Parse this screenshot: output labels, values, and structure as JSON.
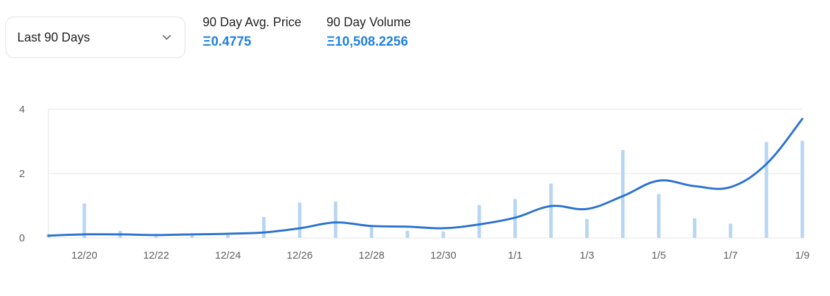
{
  "filter": {
    "selected": "Last 90 Days",
    "icon": "chevron-down-icon"
  },
  "stats": {
    "avg_price_label": "90 Day Avg. Price",
    "avg_price_value": "Ξ0.4775",
    "volume_label": "90 Day Volume",
    "volume_value": "Ξ10,508.2256"
  },
  "colors": {
    "accent": "#2081e2",
    "line": "#2a72d0",
    "bar": "#b7d6f4",
    "grid": "#e6e6e6"
  },
  "chart_data": {
    "type": "line",
    "ylim": [
      0,
      4
    ],
    "grid": true,
    "y_ticks": [
      "0",
      "2",
      "4"
    ],
    "x_tick_labels": [
      "12/20",
      "12/22",
      "12/24",
      "12/26",
      "12/28",
      "12/30",
      "1/1",
      "1/3",
      "1/5",
      "1/7",
      "1/9"
    ],
    "x_tick_days": [
      1,
      3,
      5,
      7,
      9,
      11,
      13,
      15,
      17,
      19,
      21
    ],
    "days": [
      0,
      1,
      2,
      3,
      4,
      5,
      6,
      7,
      8,
      9,
      10,
      11,
      12,
      13,
      14,
      15,
      16,
      17,
      18,
      19,
      20,
      21
    ],
    "series": [
      {
        "type": "line",
        "values": [
          0.07,
          0.11,
          0.11,
          0.09,
          0.11,
          0.13,
          0.17,
          0.3,
          0.48,
          0.37,
          0.35,
          0.3,
          0.42,
          0.63,
          0.99,
          0.9,
          1.3,
          1.78,
          1.61,
          1.58,
          2.3,
          3.7
        ]
      },
      {
        "type": "bar",
        "values": [
          0.12,
          1.07,
          0.22,
          0.05,
          0.1,
          0.13,
          0.65,
          1.1,
          1.13,
          0.38,
          0.22,
          0.2,
          1.02,
          1.21,
          1.69,
          0.59,
          2.73,
          1.36,
          0.61,
          0.44,
          2.98,
          3.02
        ]
      }
    ]
  }
}
